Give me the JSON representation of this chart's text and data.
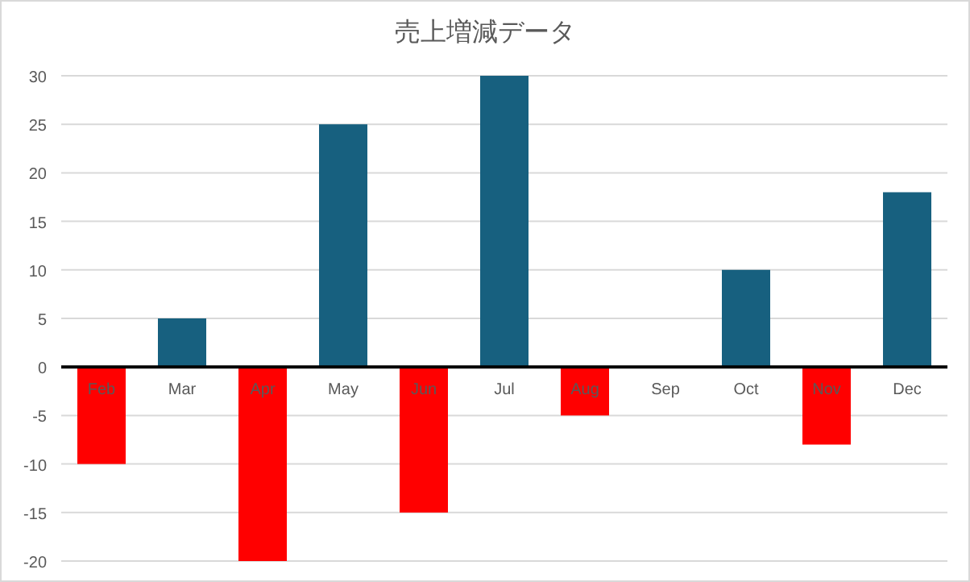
{
  "chart_data": {
    "type": "bar",
    "title": "売上増減データ",
    "categories": [
      "Feb",
      "Mar",
      "Apr",
      "May",
      "Jun",
      "Jul",
      "Aug",
      "Sep",
      "Oct",
      "Nov",
      "Dec"
    ],
    "values": [
      -10,
      5,
      -20,
      25,
      -15,
      30,
      -5,
      0,
      10,
      -8,
      18
    ],
    "colors": [
      "#ff0000",
      "#17607f",
      "#ff0000",
      "#17607f",
      "#ff0000",
      "#17607f",
      "#ff0000",
      "#17607f",
      "#17607f",
      "#ff0000",
      "#17607f"
    ],
    "ylim": [
      -20,
      30
    ],
    "yticks": [
      -20,
      -15,
      -10,
      -5,
      0,
      5,
      10,
      15,
      20,
      25,
      30
    ],
    "grid": "y"
  }
}
